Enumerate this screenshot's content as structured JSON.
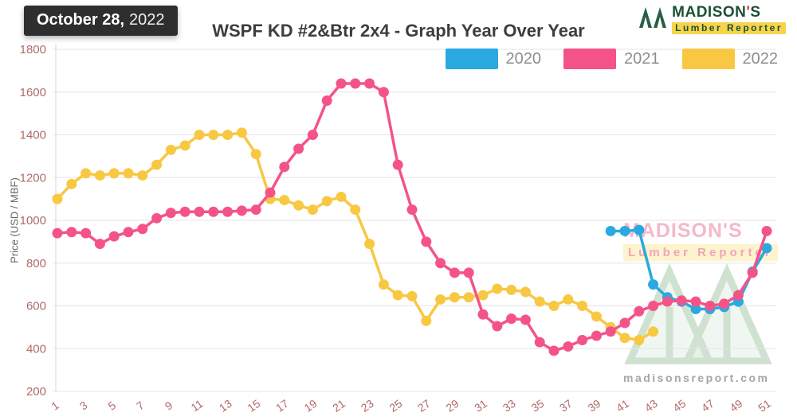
{
  "header": {
    "date_badge": {
      "date_bold": "October 28,",
      "year": "2022"
    },
    "title": "WSPF KD #2&Btr 2x4 - Graph Year Over Year",
    "logo": {
      "name_main": "MADISON",
      "apostrophe": "'",
      "name_s": "S",
      "subtitle": "Lumber Reporter"
    }
  },
  "legend": [
    {
      "label": "2020",
      "color": "#29a9e0"
    },
    {
      "label": "2021",
      "color": "#f4538a"
    },
    {
      "label": "2022",
      "color": "#f8c843"
    }
  ],
  "watermark": {
    "title": "MADISON'S",
    "subtitle": "Lumber Reporter",
    "url": "madisonsreport.com"
  },
  "chart_data": {
    "type": "line",
    "title": "WSPF KD #2&Btr 2x4 - Graph Year Over Year",
    "xlabel": "",
    "ylabel": "Price (USD / MBF)",
    "ylim": [
      200,
      1800
    ],
    "ytick_step": 200,
    "x_range": [
      1,
      51
    ],
    "xticks": [
      1,
      3,
      5,
      7,
      9,
      11,
      13,
      15,
      17,
      19,
      21,
      23,
      25,
      27,
      29,
      31,
      33,
      35,
      37,
      39,
      41,
      43,
      45,
      47,
      49,
      51
    ],
    "grid": true,
    "legend_position": "top-right",
    "marker": "circle",
    "draw_order": [
      "2020",
      "2022",
      "2021"
    ],
    "series": [
      {
        "name": "2020",
        "color": "#29a9e0",
        "x": [
          40,
          41,
          42,
          43,
          44,
          45,
          46,
          47,
          48,
          49,
          50,
          51
        ],
        "values": [
          950,
          950,
          955,
          700,
          640,
          620,
          585,
          585,
          595,
          620,
          760,
          870
        ]
      },
      {
        "name": "2021",
        "color": "#f4538a",
        "x": [
          1,
          2,
          3,
          4,
          5,
          6,
          7,
          8,
          9,
          10,
          11,
          12,
          13,
          14,
          15,
          16,
          17,
          18,
          19,
          20,
          21,
          22,
          23,
          24,
          25,
          26,
          27,
          28,
          29,
          30,
          31,
          32,
          33,
          34,
          35,
          36,
          37,
          38,
          39,
          40,
          41,
          42,
          43,
          44,
          45,
          46,
          47,
          48,
          49,
          50,
          51
        ],
        "values": [
          940,
          945,
          940,
          890,
          925,
          945,
          960,
          1010,
          1035,
          1040,
          1040,
          1040,
          1040,
          1045,
          1050,
          1130,
          1250,
          1335,
          1400,
          1560,
          1640,
          1640,
          1640,
          1600,
          1260,
          1050,
          900,
          800,
          755,
          755,
          560,
          505,
          540,
          535,
          430,
          390,
          410,
          440,
          460,
          480,
          520,
          575,
          600,
          620,
          625,
          620,
          600,
          610,
          650,
          755,
          950
        ]
      },
      {
        "name": "2022",
        "color": "#f8c843",
        "x": [
          1,
          2,
          3,
          4,
          5,
          6,
          7,
          8,
          9,
          10,
          11,
          12,
          13,
          14,
          15,
          16,
          17,
          18,
          19,
          20,
          21,
          22,
          23,
          24,
          25,
          26,
          27,
          28,
          29,
          30,
          31,
          32,
          33,
          34,
          35,
          36,
          37,
          38,
          39,
          40,
          41,
          42,
          43
        ],
        "values": [
          1100,
          1170,
          1220,
          1210,
          1220,
          1220,
          1210,
          1260,
          1330,
          1350,
          1400,
          1400,
          1400,
          1410,
          1310,
          1100,
          1095,
          1070,
          1050,
          1090,
          1110,
          1050,
          890,
          700,
          650,
          645,
          530,
          630,
          640,
          640,
          650,
          680,
          675,
          665,
          620,
          600,
          630,
          600,
          550,
          500,
          450,
          440,
          480
        ]
      }
    ]
  }
}
